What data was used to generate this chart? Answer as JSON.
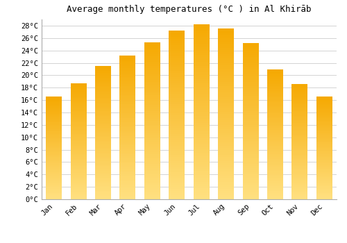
{
  "title": "Average monthly temperatures (°C ) in Al Khirāb",
  "months": [
    "Jan",
    "Feb",
    "Mar",
    "Apr",
    "May",
    "Jun",
    "Jul",
    "Aug",
    "Sep",
    "Oct",
    "Nov",
    "Dec"
  ],
  "temperatures": [
    16.5,
    18.7,
    21.5,
    23.2,
    25.3,
    27.2,
    28.2,
    27.5,
    25.2,
    20.9,
    18.6,
    16.6
  ],
  "bar_color_top": "#F5A800",
  "bar_color_bottom": "#FFE080",
  "ylim": [
    0,
    29
  ],
  "yticks": [
    0,
    2,
    4,
    6,
    8,
    10,
    12,
    14,
    16,
    18,
    20,
    22,
    24,
    26,
    28
  ],
  "background_color": "#FFFFFF",
  "grid_color": "#CCCCCC",
  "title_fontsize": 9,
  "tick_fontsize": 7.5,
  "font_family": "monospace",
  "bar_width": 0.65
}
